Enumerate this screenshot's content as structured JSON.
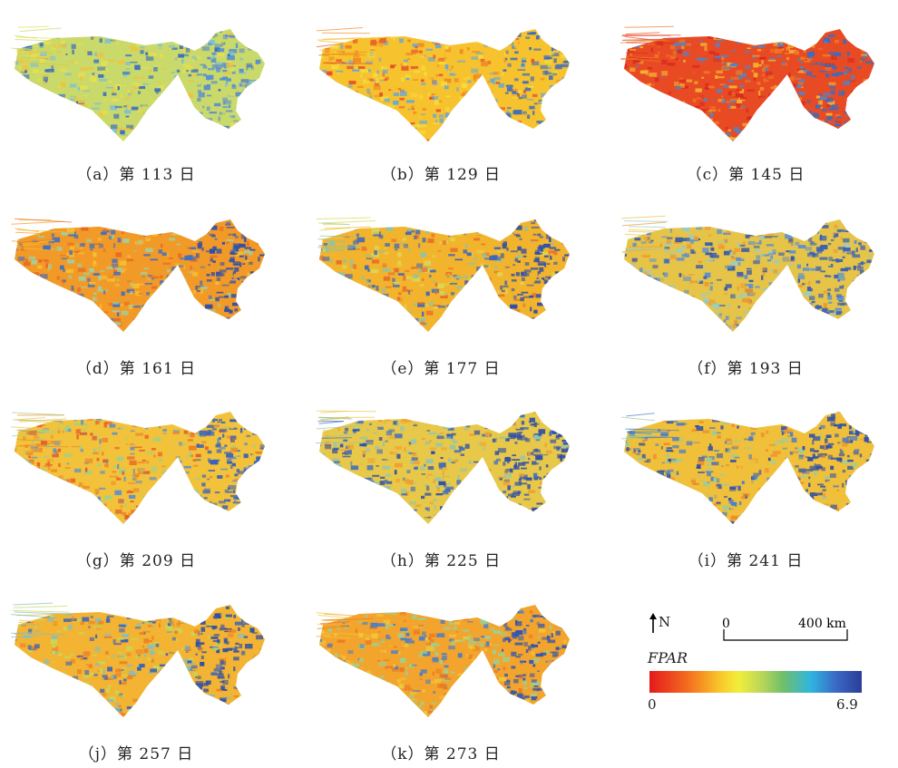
{
  "panels": [
    {
      "caption": "（a）第 113 日",
      "tone": [
        "#c9d96a",
        "#e6e04e",
        "#f2c23a",
        "#7bbfd8",
        "#3b6cc0"
      ],
      "east": "#5a8fd0"
    },
    {
      "caption": "（b）第 129 日",
      "tone": [
        "#f6c22e",
        "#f08c24",
        "#e8502a",
        "#f5dd3c",
        "#6aa8d6"
      ],
      "east": "#3b6cc0"
    },
    {
      "caption": "（c）第 145 日",
      "tone": [
        "#e84a24",
        "#f07a22",
        "#d8281e",
        "#f4b030",
        "#4d86ca"
      ],
      "east": "#3b6cc0"
    },
    {
      "caption": "（d）第 161 日",
      "tone": [
        "#f29a28",
        "#f5c030",
        "#e86a22",
        "#9fd0a0",
        "#3f6ec2"
      ],
      "east": "#2f4fa8"
    },
    {
      "caption": "（e）第 177 日",
      "tone": [
        "#f2b42c",
        "#dcd654",
        "#8cc4a8",
        "#e8702a",
        "#3d66bc"
      ],
      "east": "#2f4fa8"
    },
    {
      "caption": "（f）第 193 日",
      "tone": [
        "#e6c448",
        "#9cccc0",
        "#f09a2c",
        "#5e92cf",
        "#3457ad"
      ],
      "east": "#3a62b8"
    },
    {
      "caption": "（g）第 209 日",
      "tone": [
        "#f2c23a",
        "#a0d08a",
        "#ee8a2a",
        "#5a8fd0",
        "#e85a26"
      ],
      "east": "#3a62b8"
    },
    {
      "caption": "（h）第 225 日",
      "tone": [
        "#e8c848",
        "#8fc6b4",
        "#3e6ec2",
        "#f0a030",
        "#2f4fa8"
      ],
      "east": "#2f4fa8"
    },
    {
      "caption": "（i）第 241 日",
      "tone": [
        "#f0c03a",
        "#9ccd9a",
        "#4a7ec8",
        "#ee8a2a",
        "#2f4fa8"
      ],
      "east": "#2f4fa8"
    },
    {
      "caption": "（j）第 257 日",
      "tone": [
        "#f2b432",
        "#c8d858",
        "#7fc0c8",
        "#ee8226",
        "#3b64ba"
      ],
      "east": "#2f4fa8"
    },
    {
      "caption": "（k）第 273 日",
      "tone": [
        "#f3a42c",
        "#f0c83a",
        "#ec7a24",
        "#9ecf8e",
        "#4a7ec8"
      ],
      "east": "#3457ad"
    }
  ],
  "legend": {
    "north_label": "N",
    "scale_zero": "0",
    "scale_max": "400 km",
    "fpar_label": "FPAR",
    "min": "0",
    "max": "6.9"
  }
}
